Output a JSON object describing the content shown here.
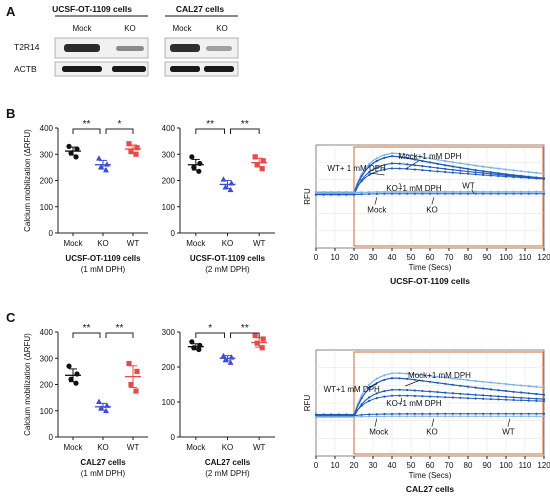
{
  "panel_labels": {
    "A": "A",
    "B": "B",
    "C": "C"
  },
  "blot": {
    "groups": [
      {
        "title": "UCSF-OT-1109 cells",
        "lanes": [
          "Mock",
          "KO"
        ]
      },
      {
        "title": "CAL27 cells",
        "lanes": [
          "Mock",
          "KO"
        ]
      }
    ],
    "rows": [
      "T2R14",
      "ACTB"
    ]
  },
  "colors": {
    "mock": "#111111",
    "ko": "#3b4fd0",
    "wt": "#e84a4a",
    "trace_dark": "#1d59b8",
    "trace_light": "#7fb2ea",
    "baseline_box": "#d96a2c"
  },
  "chart_data": [
    {
      "type": "scatter",
      "panel": "B",
      "ylabel": "Calcium mobilization (ΔRFU)",
      "ylim": [
        0,
        400
      ],
      "yticks": [
        "0",
        "100",
        "200",
        "300",
        "400"
      ],
      "categories": [
        "Mock",
        "KO",
        "WT"
      ],
      "xlabel": "UCSF-OT-1109 cells",
      "sublabel": "(1 mM DPH)",
      "points": [
        [
          330,
          320,
          305,
          290
        ],
        [
          285,
          262,
          252,
          240
        ],
        [
          340,
          325,
          310,
          300
        ]
      ],
      "means": [
        312,
        260,
        320
      ],
      "sig": [
        {
          "from": 0,
          "to": 1,
          "label": "**"
        },
        {
          "from": 1,
          "to": 2,
          "label": "*"
        }
      ]
    },
    {
      "type": "scatter",
      "panel": "B",
      "ylim": [
        0,
        400
      ],
      "yticks": [
        "0",
        "100",
        "200",
        "300",
        "400"
      ],
      "categories": [
        "Mock",
        "KO",
        "WT"
      ],
      "xlabel": "UCSF-OT-1109 cells",
      "sublabel": "(2 mM DPH)",
      "points": [
        [
          290,
          265,
          250,
          235
        ],
        [
          205,
          190,
          175,
          165
        ],
        [
          290,
          275,
          260,
          245
        ]
      ],
      "means": [
        260,
        185,
        268
      ],
      "sig": [
        {
          "from": 0,
          "to": 1,
          "label": "**"
        },
        {
          "from": 1,
          "to": 2,
          "label": "**"
        }
      ]
    },
    {
      "type": "line",
      "panel": "B",
      "ylabel": "RFU",
      "xlabel": "Time (Secs)",
      "title": "UCSF-OT-1109 cells",
      "xlim": [
        0,
        120
      ],
      "xticks": [
        "0",
        "10",
        "20",
        "30",
        "40",
        "50",
        "60",
        "70",
        "80",
        "90",
        "100",
        "110",
        "120"
      ],
      "series_labels": [
        "Mock+1 mM DPH",
        "WT+ 1 mM DPH",
        "KO+1 mM DPH",
        "WT",
        "Mock",
        "KO"
      ]
    },
    {
      "type": "scatter",
      "panel": "C",
      "ylabel": "Calcium mobilization (ΔRFU)",
      "ylim": [
        0,
        400
      ],
      "yticks": [
        "0",
        "100",
        "200",
        "300",
        "400"
      ],
      "categories": [
        "Mock",
        "KO",
        "WT"
      ],
      "xlabel": "CAL27 cells",
      "sublabel": "(1 mM DPH)",
      "points": [
        [
          270,
          240,
          220,
          205
        ],
        [
          135,
          120,
          110,
          100
        ],
        [
          280,
          250,
          200,
          175
        ]
      ],
      "means": [
        235,
        115,
        230
      ],
      "sig": [
        {
          "from": 0,
          "to": 1,
          "label": "**"
        },
        {
          "from": 1,
          "to": 2,
          "label": "**"
        }
      ]
    },
    {
      "type": "scatter",
      "panel": "C",
      "ylim": [
        0,
        300
      ],
      "yticks": [
        "0",
        "100",
        "200",
        "300"
      ],
      "categories": [
        "Mock",
        "KO",
        "WT"
      ],
      "xlabel": "CAL27 cells",
      "sublabel": "(2 mM DPH)",
      "points": [
        [
          272,
          262,
          255,
          250
        ],
        [
          232,
          228,
          220,
          213
        ],
        [
          290,
          280,
          268,
          255
        ]
      ],
      "means": [
        258,
        225,
        270
      ],
      "sig": [
        {
          "from": 0,
          "to": 1,
          "label": "*"
        },
        {
          "from": 1,
          "to": 2,
          "label": "**"
        }
      ]
    },
    {
      "type": "line",
      "panel": "C",
      "ylabel": "RFU",
      "xlabel": "Time (Secs)",
      "title": "CAL27 cells",
      "xlim": [
        0,
        120
      ],
      "xticks": [
        "0",
        "10",
        "20",
        "30",
        "40",
        "50",
        "60",
        "70",
        "80",
        "90",
        "100",
        "110",
        "120"
      ],
      "series_labels": [
        "Mock+1 mM DPH",
        "WT+1 mM DPH",
        "KO+1 mM DPH",
        "Mock",
        "KO",
        "WT"
      ]
    }
  ]
}
